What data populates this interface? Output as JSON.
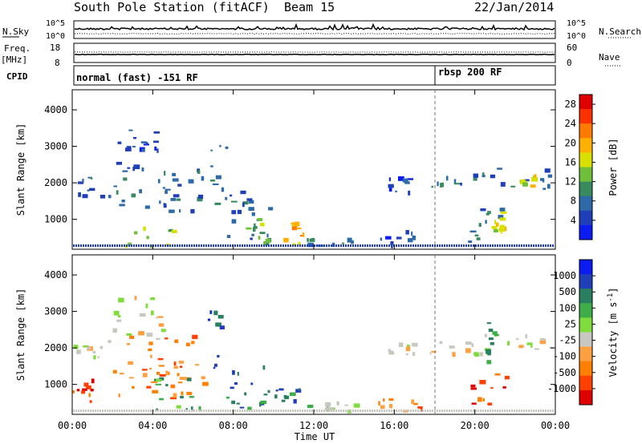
{
  "header": {
    "title": "South Pole Station (fitACF)",
    "beam": "Beam 15",
    "date": "22/Jan/2014"
  },
  "strip_nsky": {
    "left_label": "N.Sky",
    "right_label": "N.Search",
    "left_ticks": [
      "10^5",
      "10^0"
    ],
    "right_ticks": [
      "10^5",
      "10^0"
    ]
  },
  "strip_freq": {
    "left_label_1": "Freq.",
    "left_label_2": "[MHz]",
    "right_label": "Nave",
    "left_ticks": [
      "18",
      "8"
    ],
    "right_ticks": [
      "60",
      "0"
    ]
  },
  "cpid": {
    "label": "CPID",
    "segments": [
      "normal (fast) -151 RF",
      "rbsp 200 RF"
    ]
  },
  "chart_data": [
    {
      "type": "heatmap",
      "panel": "power",
      "title": "",
      "xlabel": "",
      "ylabel": "Slant Range [km]",
      "x_ticks": [
        "00:00",
        "04:00",
        "08:00",
        "12:00",
        "16:00",
        "20:00",
        "00:00"
      ],
      "y_ticks": [
        "1000",
        "2000",
        "3000",
        "4000"
      ],
      "xlim_hours": [
        0,
        24
      ],
      "ylim_km": [
        180,
        4550
      ],
      "colorbar": {
        "label": "Power [dB]",
        "ticks": [
          "4",
          "8",
          "12",
          "16",
          "20",
          "24",
          "28"
        ],
        "range": [
          0,
          30
        ],
        "colors": [
          "#0a1cf0",
          "#1f3fb8",
          "#2f6aa8",
          "#3a8a60",
          "#6fbf3a",
          "#d8e000",
          "#ffb000",
          "#ff7a00",
          "#ff3000",
          "#e00000"
        ]
      },
      "regions": [
        {
          "t0": 0.0,
          "t1": 2.0,
          "r0": 1600,
          "r1": 2200,
          "level": 2
        },
        {
          "t0": 2.0,
          "t1": 3.5,
          "r0": 2300,
          "r1": 3100,
          "level": 1
        },
        {
          "t0": 2.8,
          "t1": 4.5,
          "r0": 2800,
          "r1": 3500,
          "level": 1
        },
        {
          "t0": 2.0,
          "t1": 6.5,
          "r0": 1200,
          "r1": 2400,
          "level": 2
        },
        {
          "t0": 2.5,
          "t1": 5.0,
          "r0": 250,
          "r1": 800,
          "level": 4
        },
        {
          "t0": 6.8,
          "t1": 7.6,
          "r0": 1100,
          "r1": 3200,
          "level": 2
        },
        {
          "t0": 7.6,
          "t1": 10.0,
          "r0": 300,
          "r1": 1800,
          "level": 2
        },
        {
          "t0": 8.5,
          "t1": 9.8,
          "r0": 300,
          "r1": 1000,
          "level": 4
        },
        {
          "t0": 10.2,
          "t1": 11.5,
          "r0": 300,
          "r1": 900,
          "level": 6
        },
        {
          "t0": 11.5,
          "t1": 14.0,
          "r0": 250,
          "r1": 500,
          "level": 2
        },
        {
          "t0": 15.0,
          "t1": 17.5,
          "r0": 250,
          "r1": 700,
          "level": 1
        },
        {
          "t0": 15.5,
          "t1": 17.0,
          "r0": 1700,
          "r1": 2200,
          "level": 1
        },
        {
          "t0": 17.5,
          "t1": 20.0,
          "r0": 1850,
          "r1": 2200,
          "level": 2
        },
        {
          "t0": 19.5,
          "t1": 21.5,
          "r0": 300,
          "r1": 1300,
          "level": 2
        },
        {
          "t0": 20.8,
          "t1": 21.3,
          "r0": 500,
          "r1": 1200,
          "level": 5
        },
        {
          "t0": 20.0,
          "t1": 24.0,
          "r0": 1800,
          "r1": 2400,
          "level": 2
        },
        {
          "t0": 22.0,
          "t1": 23.0,
          "r0": 1900,
          "r1": 2200,
          "level": 5
        }
      ]
    },
    {
      "type": "heatmap",
      "panel": "velocity",
      "title": "",
      "xlabel": "Time UT",
      "ylabel": "Slant Range [km]",
      "x_ticks": [
        "00:00",
        "04:00",
        "08:00",
        "12:00",
        "16:00",
        "20:00",
        "00:00"
      ],
      "y_ticks": [
        "1000",
        "2000",
        "3000",
        "4000"
      ],
      "xlim_hours": [
        0,
        24
      ],
      "ylim_km": [
        180,
        4550
      ],
      "colorbar": {
        "label": "Velocity [m s^-1]",
        "ticks": [
          "1000",
          "500",
          "100",
          "25",
          "-25",
          "-100",
          "-500",
          "-1000"
        ],
        "range": [
          -1200,
          1200
        ],
        "colors": [
          "#e00000",
          "#ff4000",
          "#ff8000",
          "#ffa040",
          "#c8c8c0",
          "#7fdc3c",
          "#3fae4a",
          "#2a7f60",
          "#1f3fb8",
          "#0a1cf0"
        ]
      },
      "regions": [
        {
          "t0": 0.0,
          "t1": 2.0,
          "r0": 1600,
          "r1": 2200,
          "level": 4
        },
        {
          "t0": 0.0,
          "t1": 1.2,
          "r0": 500,
          "r1": 1100,
          "level": 1
        },
        {
          "t0": 2.0,
          "t1": 4.5,
          "r0": 2200,
          "r1": 3400,
          "level": 4
        },
        {
          "t0": 2.0,
          "t1": 6.5,
          "r0": 600,
          "r1": 2300,
          "level": 2
        },
        {
          "t0": 4.0,
          "t1": 6.5,
          "r0": 300,
          "r1": 1200,
          "level": 6
        },
        {
          "t0": 6.6,
          "t1": 7.4,
          "r0": 1300,
          "r1": 3000,
          "level": 8
        },
        {
          "t0": 7.4,
          "t1": 9.8,
          "r0": 300,
          "r1": 1500,
          "level": 7
        },
        {
          "t0": 10.0,
          "t1": 11.5,
          "r0": 300,
          "r1": 900,
          "level": 7
        },
        {
          "t0": 11.5,
          "t1": 14.0,
          "r0": 250,
          "r1": 500,
          "level": 5
        },
        {
          "t0": 15.0,
          "t1": 17.5,
          "r0": 250,
          "r1": 700,
          "level": 2
        },
        {
          "t0": 15.5,
          "t1": 17.0,
          "r0": 1800,
          "r1": 2100,
          "level": 4
        },
        {
          "t0": 17.5,
          "t1": 20.0,
          "r0": 1800,
          "r1": 2200,
          "level": 4
        },
        {
          "t0": 19.7,
          "t1": 21.5,
          "r0": 300,
          "r1": 1300,
          "level": 1
        },
        {
          "t0": 20.0,
          "t1": 24.0,
          "r0": 1800,
          "r1": 2400,
          "level": 4
        },
        {
          "t0": 20.5,
          "t1": 21.0,
          "r0": 1500,
          "r1": 2800,
          "level": 6
        }
      ]
    }
  ]
}
